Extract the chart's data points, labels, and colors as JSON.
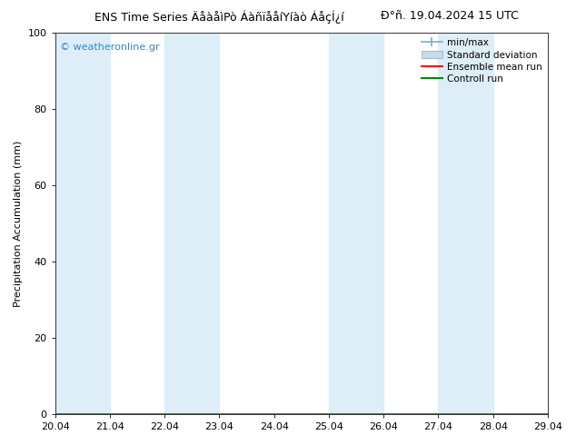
{
  "title_main": "ENS Time Series ÄåàåìÐò ÁàñïååíÝíàò ÁåçÍ¿í",
  "title_date": "Ðáñ. 19.04.2024 15 UTC",
  "ylabel": "Precipitation Accumulation (mm)",
  "watermark": "© weatheronline.gr",
  "xlim_start": 0.0,
  "xlim_end": 9.0,
  "ylim": [
    0,
    100
  ],
  "yticks": [
    0,
    20,
    40,
    60,
    80,
    100
  ],
  "xtick_labels": [
    "20.04",
    "21.04",
    "22.04",
    "23.04",
    "24.04",
    "25.04",
    "26.04",
    "27.04",
    "28.04",
    "29.04"
  ],
  "shaded_bands": [
    [
      0.0,
      1.0
    ],
    [
      2.0,
      3.0
    ],
    [
      5.0,
      6.0
    ],
    [
      7.0,
      8.0
    ]
  ],
  "shaded_color": "#ddeef8",
  "background_color": "#ffffff",
  "legend_labels": [
    "min/max",
    "Standard deviation",
    "Ensemble mean run",
    "Controll run"
  ],
  "minmax_color": "#7ab0cc",
  "std_face_color": "#c8dce8",
  "std_edge_color": "#aabccc",
  "ensemble_mean_color": "#ff0000",
  "control_run_color": "#008800",
  "title_fontsize": 9,
  "axis_label_fontsize": 8,
  "tick_fontsize": 8,
  "legend_fontsize": 7.5,
  "watermark_fontsize": 8,
  "watermark_color": "#3388cc"
}
